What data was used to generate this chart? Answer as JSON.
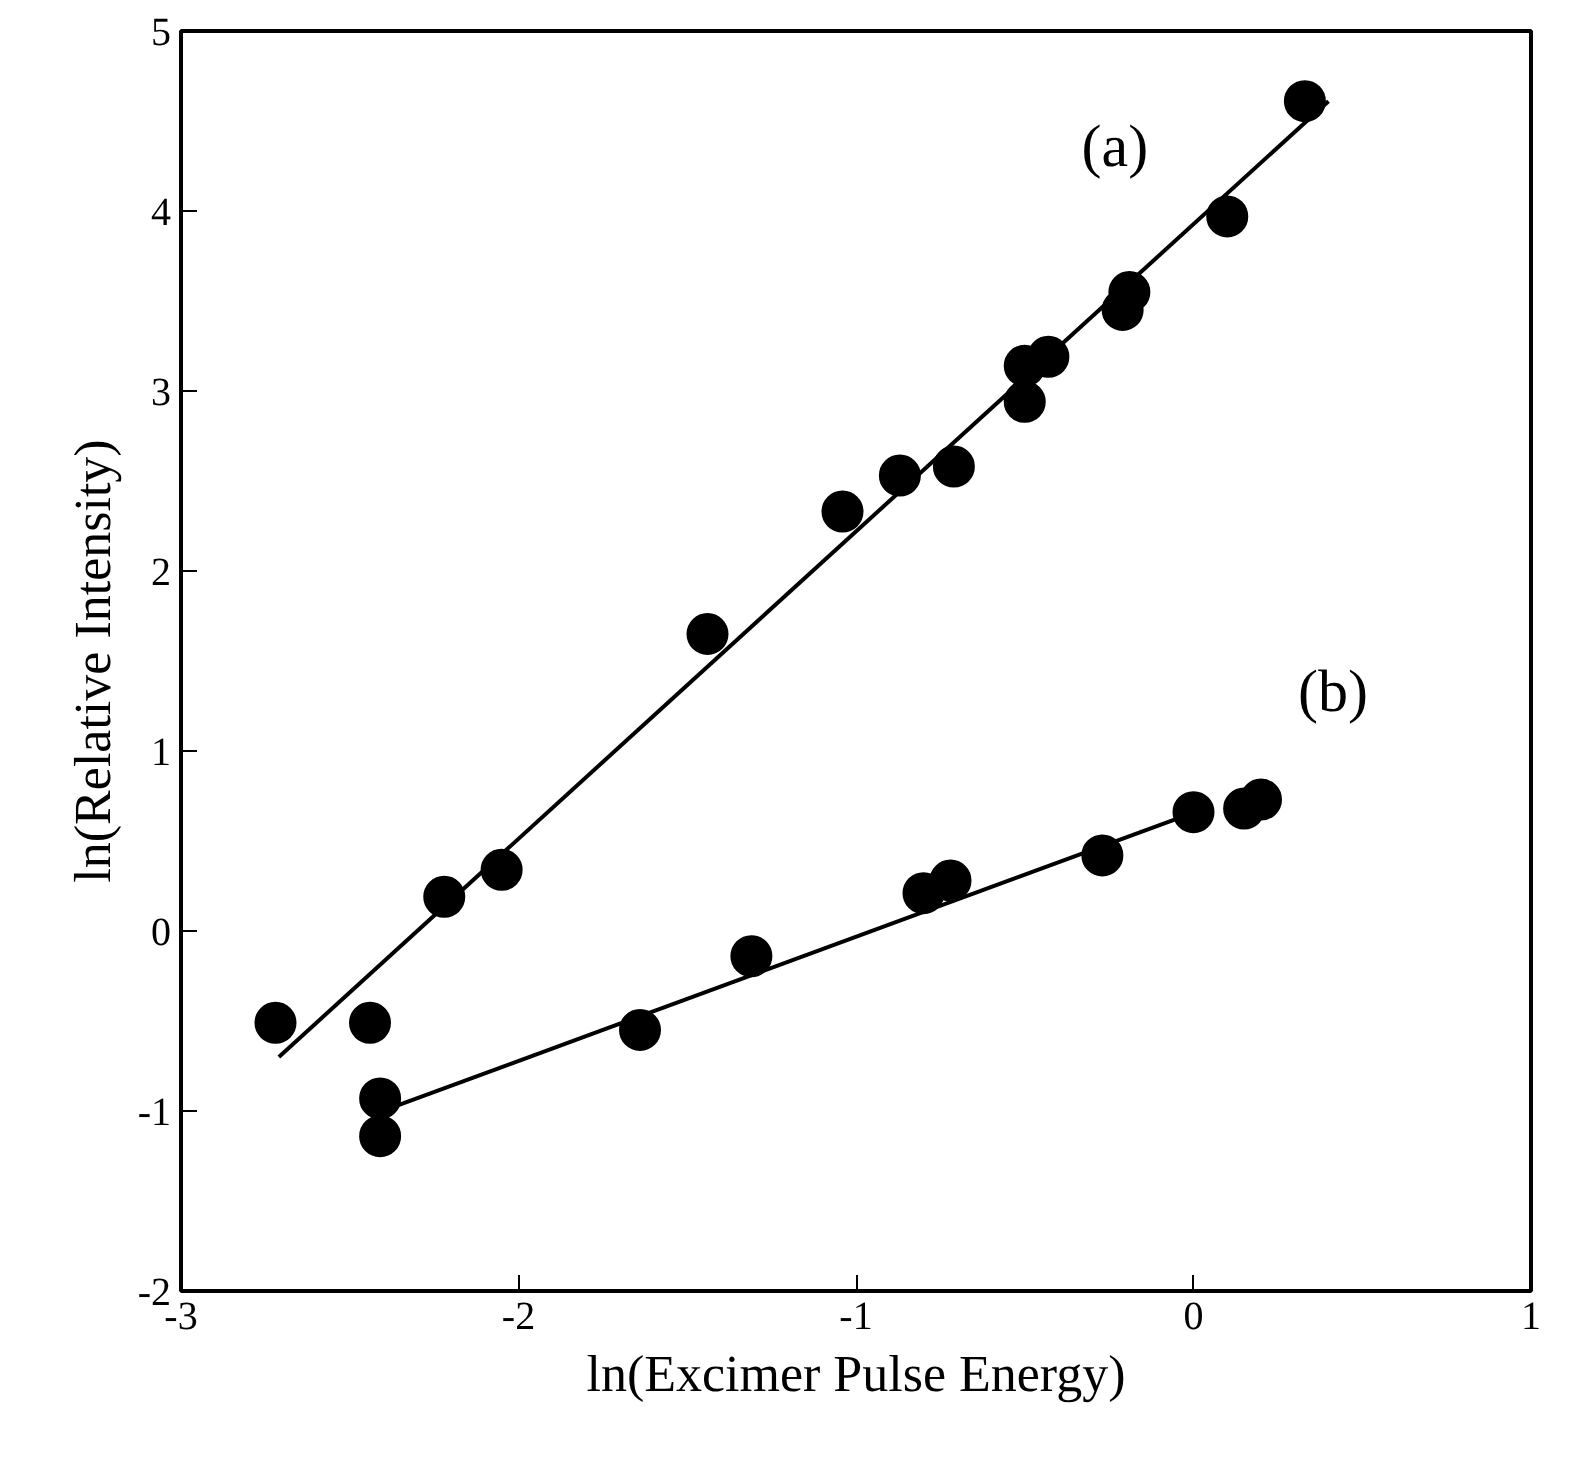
{
  "chart_data": {
    "type": "scatter",
    "xlabel": "ln(Excimer Pulse Energy)",
    "ylabel": "ln(Relative Intensity)",
    "xlim": [
      -3,
      1
    ],
    "ylim": [
      -2,
      5
    ],
    "xticks": [
      -3,
      -2,
      -1,
      0,
      1
    ],
    "yticks": [
      -2,
      -1,
      0,
      1,
      2,
      3,
      4,
      5
    ],
    "grid": false,
    "marker": "circle",
    "series": [
      {
        "name": "(a)",
        "color": "#000000",
        "x": [
          -2.72,
          -2.44,
          -2.22,
          -2.05,
          -1.44,
          -1.04,
          -0.87,
          -0.71,
          -0.5,
          -0.5,
          -0.43,
          -0.21,
          -0.19,
          0.1,
          0.33
        ],
        "values": [
          -0.51,
          -0.51,
          0.19,
          0.34,
          1.65,
          2.33,
          2.53,
          2.58,
          2.94,
          3.14,
          3.19,
          3.45,
          3.55,
          3.97,
          4.61
        ]
      },
      {
        "name": "(b)",
        "color": "#000000",
        "x": [
          -2.41,
          -2.41,
          -1.64,
          -1.31,
          -0.8,
          -0.72,
          -0.27,
          0.0,
          0.15,
          0.2
        ],
        "values": [
          -0.93,
          -1.14,
          -0.55,
          -0.14,
          0.21,
          0.28,
          0.42,
          0.66,
          0.68,
          0.73
        ]
      },
      {
        "type": "line",
        "color": "#000000",
        "marker": "none",
        "x": [
          -2.71,
          0.4
        ],
        "values": [
          -0.7,
          4.61
        ]
      },
      {
        "type": "line",
        "color": "#000000",
        "marker": "none",
        "x": [
          -2.36,
          -0.04
        ],
        "values": [
          -0.97,
          0.63
        ]
      }
    ]
  }
}
